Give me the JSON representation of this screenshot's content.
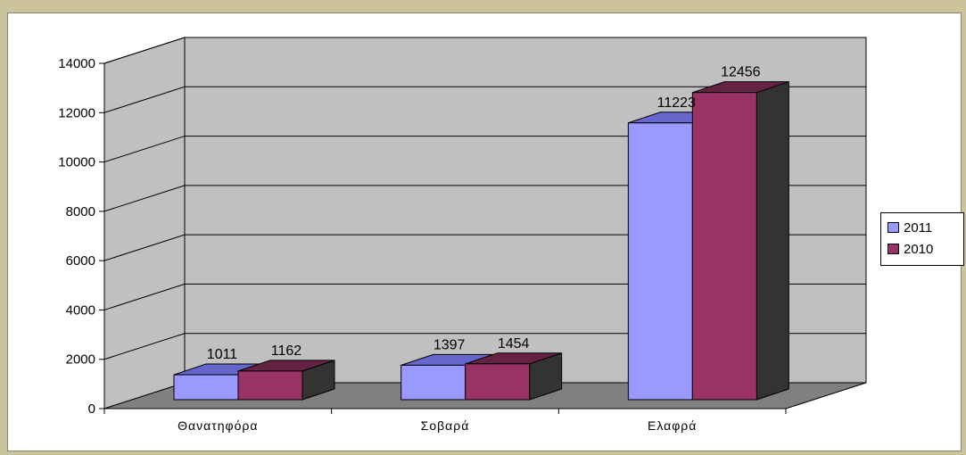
{
  "chart_data": {
    "type": "bar",
    "categories": [
      "Θανατηφόρα",
      "Σοβαρά",
      "Ελαφρά"
    ],
    "series": [
      {
        "name": "2011",
        "values": [
          1011,
          1397,
          11223
        ],
        "color": "#9999ff"
      },
      {
        "name": "2010",
        "values": [
          1162,
          1454,
          12456
        ],
        "color": "#993366"
      }
    ],
    "yticks": [
      0,
      2000,
      4000,
      6000,
      8000,
      10000,
      12000,
      14000
    ],
    "ylim": [
      0,
      14000
    ],
    "grid": true,
    "legend_position": "right",
    "colors": {
      "back_wall": "#c0c0c0",
      "floor": "#808080",
      "side_2011": "#333399",
      "side_2010": "#333333",
      "top_2011": "#6666cc",
      "top_2010": "#662244"
    }
  }
}
